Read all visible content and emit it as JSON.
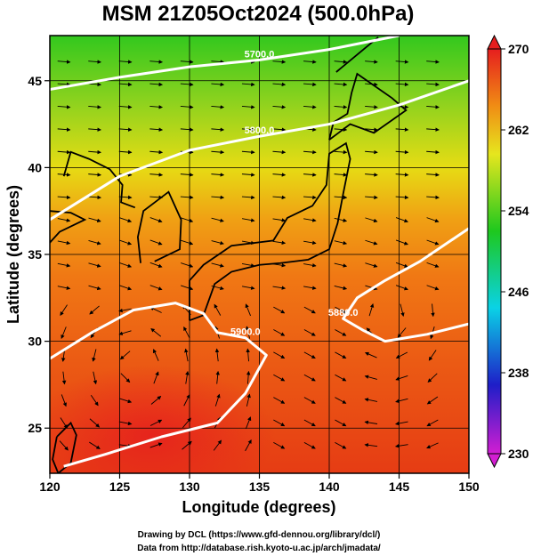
{
  "chart_data": {
    "type": "heatmap",
    "title": "MSM 21Z05Oct2024 (500.0hPa)",
    "xlabel": "Longitude (degrees)",
    "ylabel": "Latitude  (degrees)",
    "xlim": [
      120,
      150
    ],
    "ylim": [
      22.4,
      47.6
    ],
    "xticks": [
      120,
      125,
      130,
      135,
      140,
      145,
      150
    ],
    "yticks": [
      25,
      30,
      35,
      40,
      45
    ],
    "colorbar": {
      "min": 230,
      "max": 270,
      "ticks": [
        230,
        238,
        246,
        254,
        262,
        270
      ],
      "colormap": [
        "#d21ed2",
        "#1e1ec8",
        "#0ad2e6",
        "#1ec81e",
        "#e6e61e",
        "#f08c14",
        "#e61e1e"
      ]
    },
    "contours": [
      {
        "label": "5700.0",
        "points": [
          [
            120,
            44.5
          ],
          [
            125,
            45.2
          ],
          [
            130,
            45.8
          ],
          [
            135,
            46.2
          ],
          [
            140,
            46.8
          ],
          [
            145,
            47.6
          ]
        ]
      },
      {
        "label": "5800.0",
        "points": [
          [
            120,
            37.0
          ],
          [
            125,
            39.5
          ],
          [
            130,
            41.0
          ],
          [
            135,
            41.8
          ],
          [
            140,
            42.5
          ],
          [
            145,
            43.6
          ],
          [
            150,
            45.0
          ]
        ]
      },
      {
        "label": "5900.0",
        "points": [
          [
            120,
            29.0
          ],
          [
            123,
            30.5
          ],
          [
            126,
            31.8
          ],
          [
            129,
            32.2
          ],
          [
            131,
            31.6
          ],
          [
            132,
            30.5
          ],
          [
            134,
            30.2
          ],
          [
            135.5,
            29.2
          ],
          [
            134,
            27.0
          ],
          [
            132,
            25.3
          ],
          [
            128,
            24.5
          ],
          [
            124,
            23.5
          ],
          [
            121,
            22.8
          ]
        ]
      },
      {
        "label": "5880.0",
        "points": [
          [
            150,
            31.0
          ],
          [
            147,
            30.4
          ],
          [
            144,
            30.0
          ],
          [
            142.5,
            30.6
          ],
          [
            141,
            31.3
          ],
          [
            142,
            32.5
          ],
          [
            144,
            33.5
          ],
          [
            146.5,
            34.6
          ],
          [
            150,
            36.5
          ]
        ]
      }
    ],
    "grid": true
  },
  "credits": {
    "line1": "Drawing by DCL (https://www.gfd-dennou.org/library/dcl/)",
    "line2": "Data from http://database.rish.kyoto-u.ac.jp/arch/jmadata/"
  }
}
